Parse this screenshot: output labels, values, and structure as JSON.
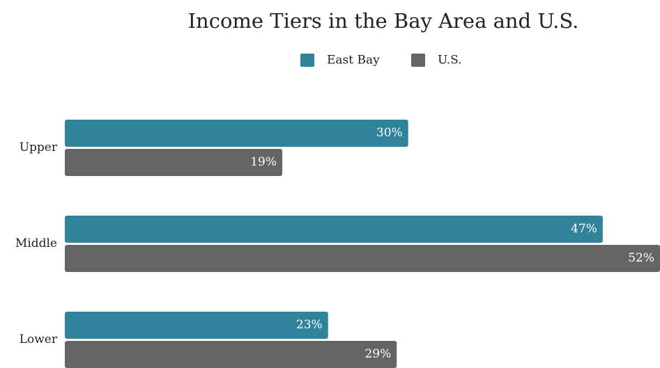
{
  "chart_data": {
    "type": "bar",
    "orientation": "horizontal",
    "title": "Income Tiers in the Bay Area and U.S.",
    "categories": [
      "Upper",
      "Middle",
      "Lower"
    ],
    "series": [
      {
        "name": "East Bay",
        "color": "#31839c",
        "values": [
          30,
          47,
          23
        ],
        "value_labels": [
          "30%",
          "47%",
          "23%"
        ]
      },
      {
        "name": "U.S.",
        "color": "#646464",
        "values": [
          19,
          52,
          29
        ],
        "value_labels": [
          "19%",
          "52%",
          "29%"
        ]
      }
    ],
    "legend": "top"
  }
}
